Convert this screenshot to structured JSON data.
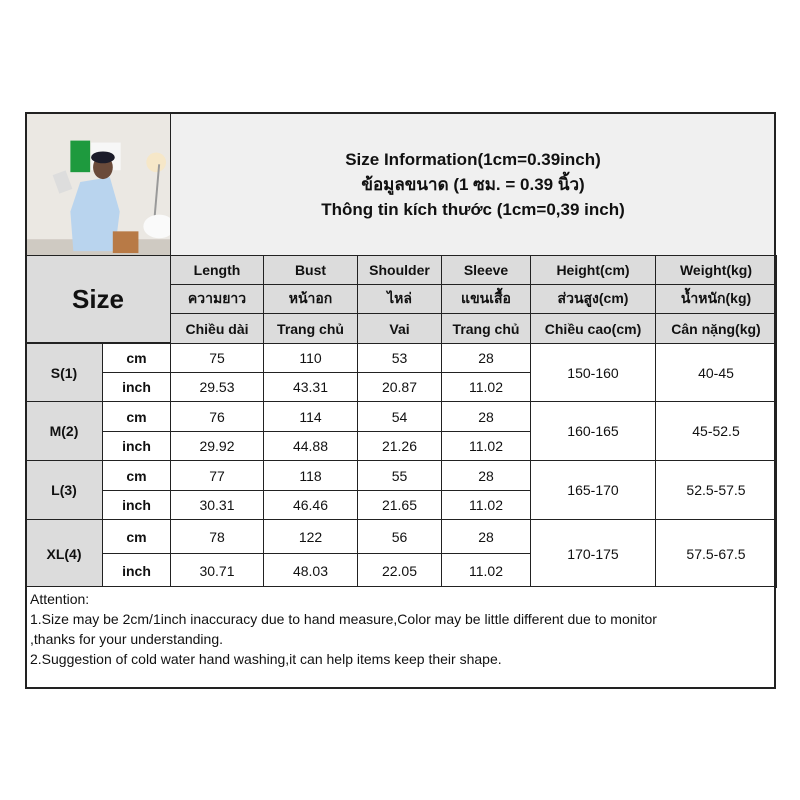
{
  "title": [
    "Size Information(1cm=0.39inch)",
    "ข้อมูลขนาด (1 ซม. = 0.39 นิ้ว)",
    "Thông tin kích thước (1cm=0,39 inch)"
  ],
  "size_label": "Size",
  "columns": [
    [
      "Length",
      "ความยาว",
      "Chiều dài"
    ],
    [
      "Bust",
      "หน้าอก",
      "Trang chủ"
    ],
    [
      "Shoulder",
      "ไหล่",
      "Vai"
    ],
    [
      "Sleeve",
      "แขนเสื้อ",
      "Trang chủ"
    ],
    [
      "Height(cm)",
      "ส่วนสูง(cm)",
      "Chiều cao(cm)"
    ],
    [
      "Weight(kg)",
      "น้ำหนัก(kg)",
      "Cân nặng(kg)"
    ]
  ],
  "units": [
    "cm",
    "inch"
  ],
  "rows": [
    {
      "size": "S(1)",
      "cm": [
        "75",
        "110",
        "53",
        "28"
      ],
      "inch": [
        "29.53",
        "43.31",
        "20.87",
        "11.02"
      ],
      "height": "150-160",
      "weight": "40-45"
    },
    {
      "size": "M(2)",
      "cm": [
        "76",
        "114",
        "54",
        "28"
      ],
      "inch": [
        "29.92",
        "44.88",
        "21.26",
        "11.02"
      ],
      "height": "160-165",
      "weight": "45-52.5"
    },
    {
      "size": "L(3)",
      "cm": [
        "77",
        "118",
        "55",
        "28"
      ],
      "inch": [
        "30.31",
        "46.46",
        "21.65",
        "11.02"
      ],
      "height": "165-170",
      "weight": "52.5-57.5"
    },
    {
      "size": "XL(4)",
      "cm": [
        "78",
        "122",
        "56",
        "28"
      ],
      "inch": [
        "30.71",
        "48.03",
        "22.05",
        "11.02"
      ],
      "height": "170-175",
      "weight": "57.5-67.5"
    }
  ],
  "notes": [
    "Attention:",
    "1.Size may be 2cm/1inch inaccuracy due to hand measure,Color may be little different due to monitor",
    ",thanks for your understanding.",
    "2.Suggestion of cold water hand washing,it can help items keep their shape."
  ]
}
